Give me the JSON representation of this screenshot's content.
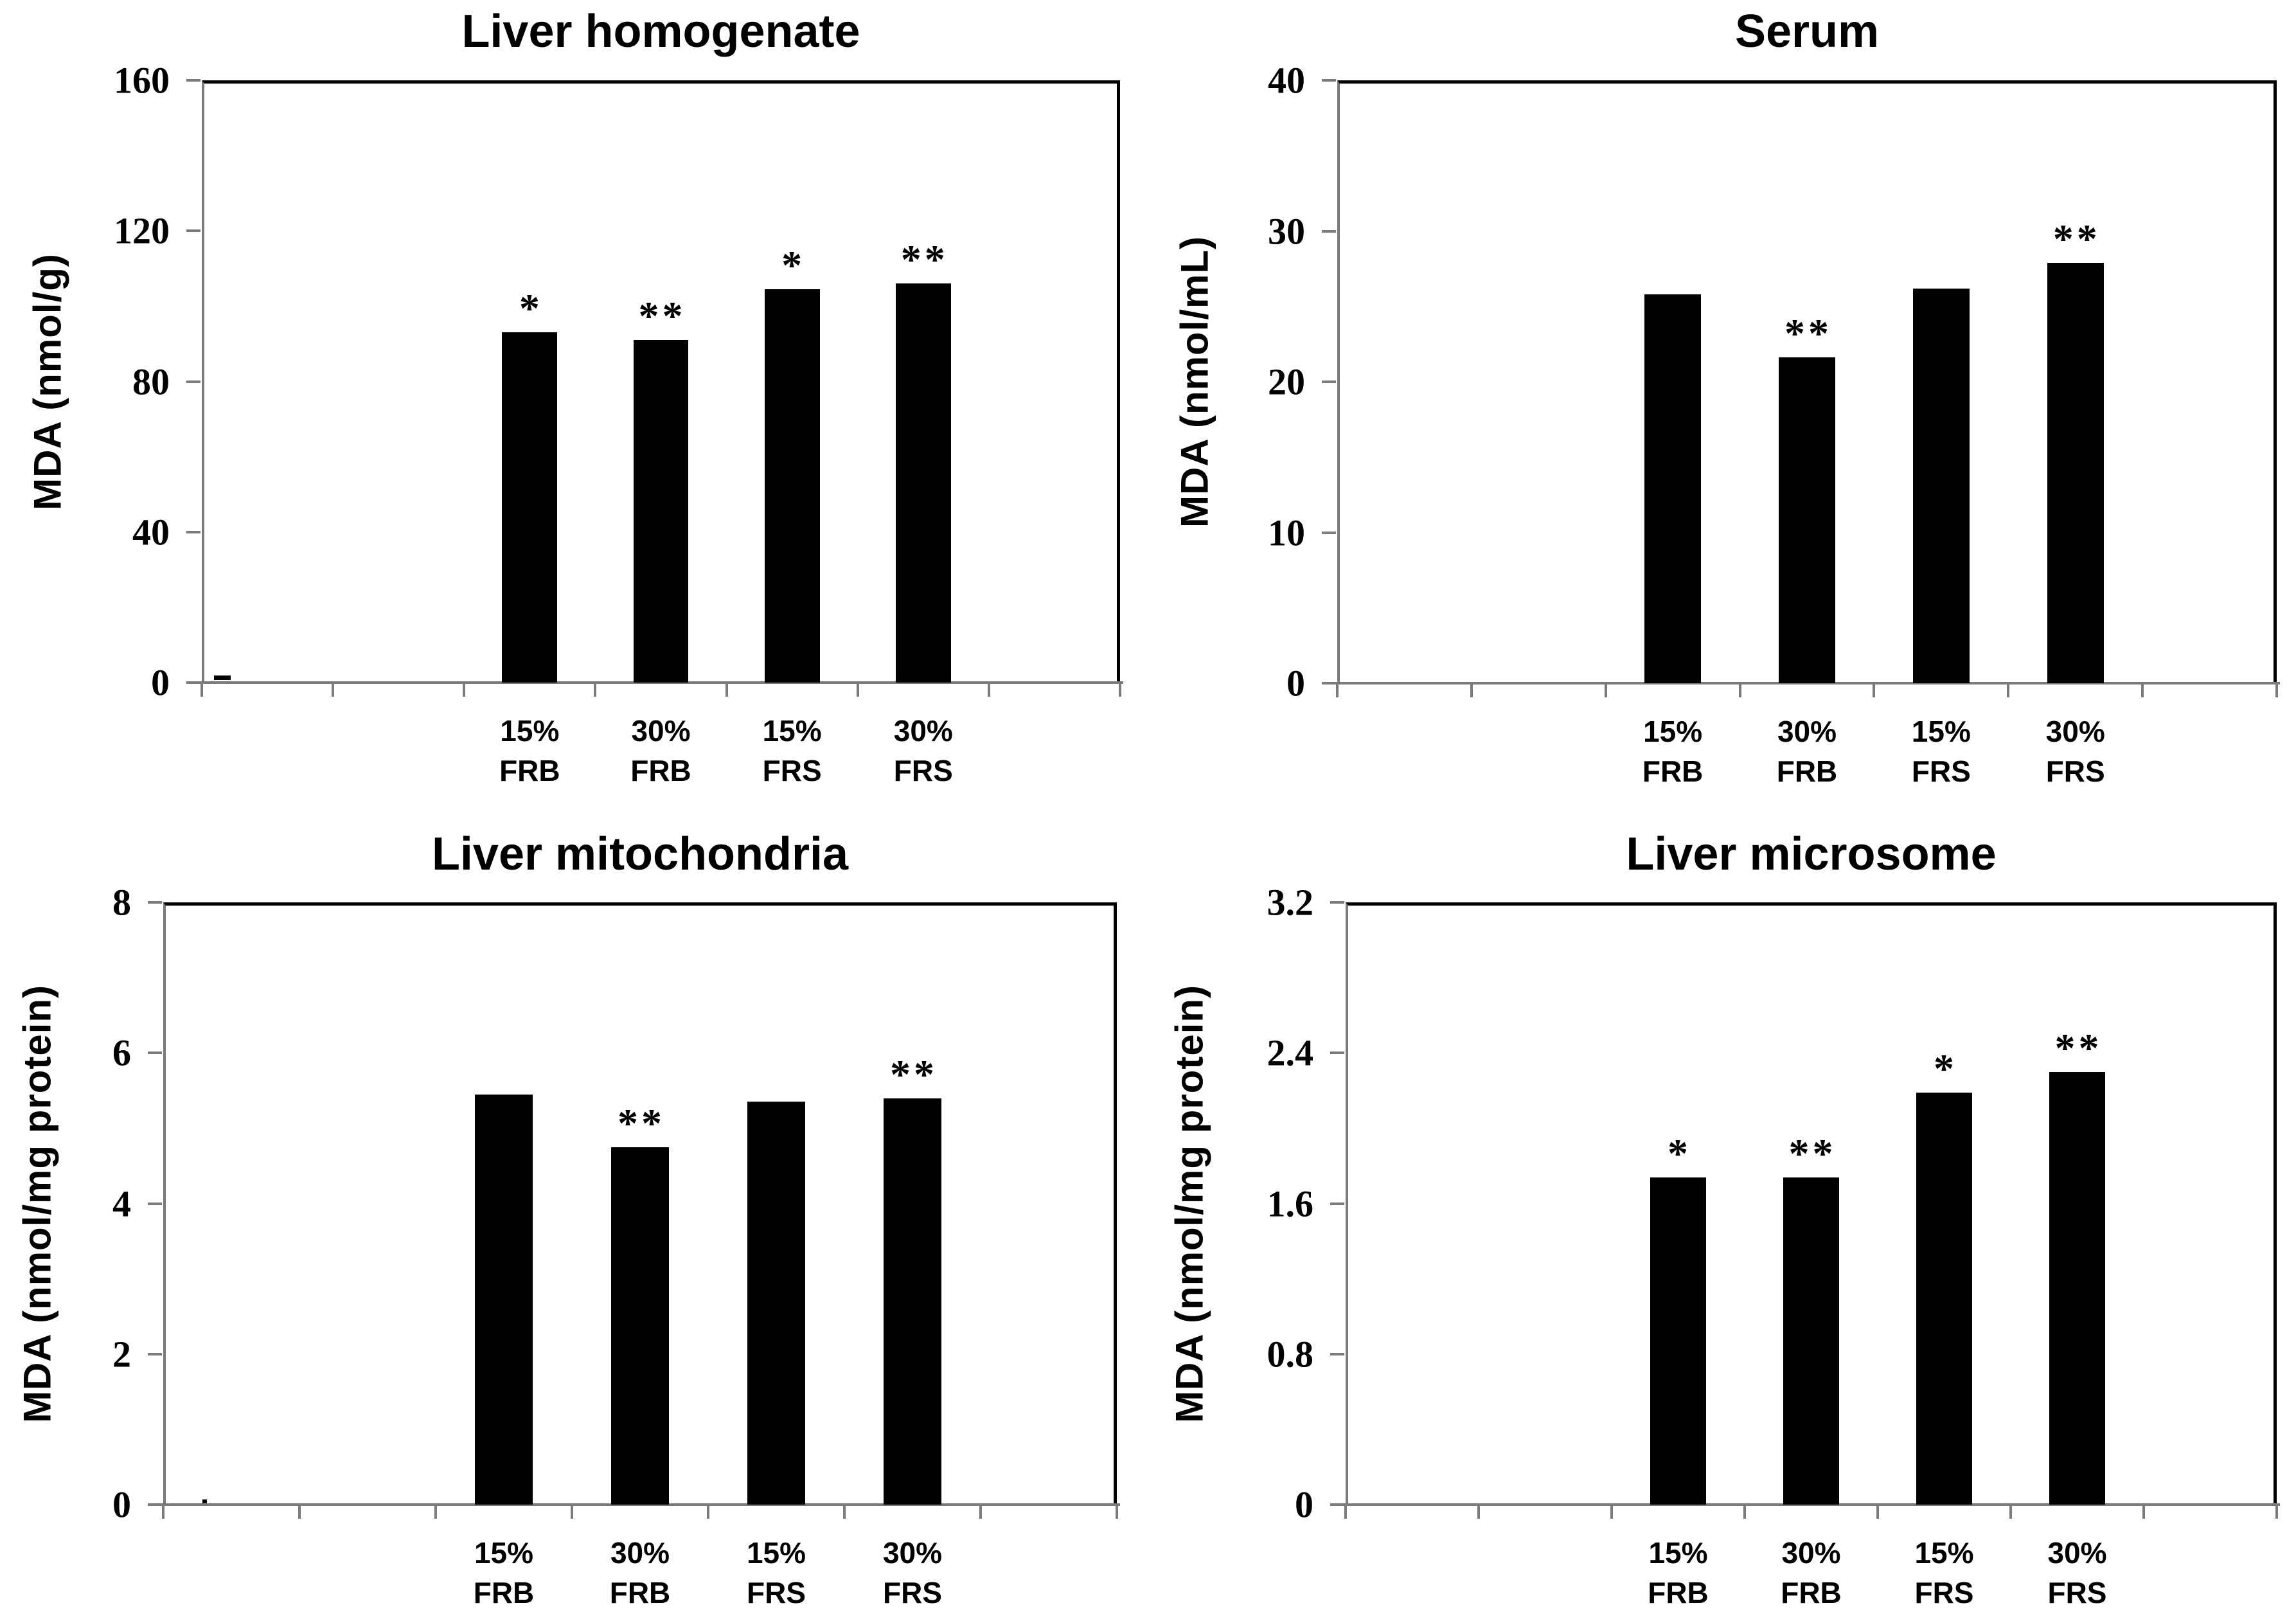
{
  "chart_data": {
    "type": "bar",
    "layout_hint": "2x2 grid of single-series bar charts, no legend, no gridlines, y axis ticks outside, 7 category slots per axis with bars occupying slots 3-6",
    "colors": {
      "bar": "#000000",
      "axis": "#7b7b7b",
      "frame": "#000000",
      "text": "#000000",
      "background": "#ffffff"
    },
    "significance_note_symbols": [
      "*",
      "**"
    ],
    "panels": [
      {
        "id": "liver-homogenate",
        "title": "Liver homogenate",
        "ylabel": "MDA (nmol/g)",
        "ymax": 160,
        "ylim": [
          0,
          160
        ],
        "yticks": [
          "160",
          "120",
          "80",
          "40",
          "0"
        ],
        "categories": [
          [
            "15%",
            "FRB"
          ],
          [
            "30%",
            "FRB"
          ],
          [
            "15%",
            "FRS"
          ],
          [
            "30%",
            "FRS"
          ]
        ],
        "values": [
          93,
          91,
          104.5,
          106
        ],
        "significance": [
          "*",
          "**",
          "*",
          "**"
        ]
      },
      {
        "id": "serum",
        "title": "Serum",
        "ylabel": "MDA (nmol/mL)",
        "ymax": 40,
        "ylim": [
          0,
          40
        ],
        "yticks": [
          "40",
          "30",
          "20",
          "10",
          "0"
        ],
        "categories": [
          [
            "15%",
            "FRB"
          ],
          [
            "30%",
            "FRB"
          ],
          [
            "15%",
            "FRS"
          ],
          [
            "30%",
            "FRS"
          ]
        ],
        "values": [
          25.8,
          21.6,
          26.2,
          27.9
        ],
        "significance": [
          "",
          "**",
          "",
          "**"
        ]
      },
      {
        "id": "liver-mitochondria",
        "title": "Liver mitochondria",
        "ylabel": "MDA (nmol/mg protein)",
        "ymax": 8,
        "ylim": [
          0,
          8
        ],
        "yticks": [
          "8",
          "6",
          "4",
          "2",
          "0"
        ],
        "categories": [
          [
            "15%",
            "FRB"
          ],
          [
            "30%",
            "FRB"
          ],
          [
            "15%",
            "FRS"
          ],
          [
            "30%",
            "FRS"
          ]
        ],
        "values": [
          5.45,
          4.75,
          5.35,
          5.4
        ],
        "significance": [
          "",
          "**",
          "",
          "**"
        ]
      },
      {
        "id": "liver-microsome",
        "title": "Liver microsome",
        "ylabel": "MDA (nmol/mg protein)",
        "ymax": 3.2,
        "ylim": [
          0,
          3.2
        ],
        "yticks": [
          "3.2",
          "2.4",
          "1.6",
          "0.8",
          "0"
        ],
        "categories": [
          [
            "15%",
            "FRB"
          ],
          [
            "30%",
            "FRB"
          ],
          [
            "15%",
            "FRS"
          ],
          [
            "30%",
            "FRS"
          ]
        ],
        "values": [
          1.74,
          1.74,
          2.19,
          2.3
        ],
        "significance": [
          "*",
          "**",
          "*",
          "**"
        ]
      }
    ]
  }
}
